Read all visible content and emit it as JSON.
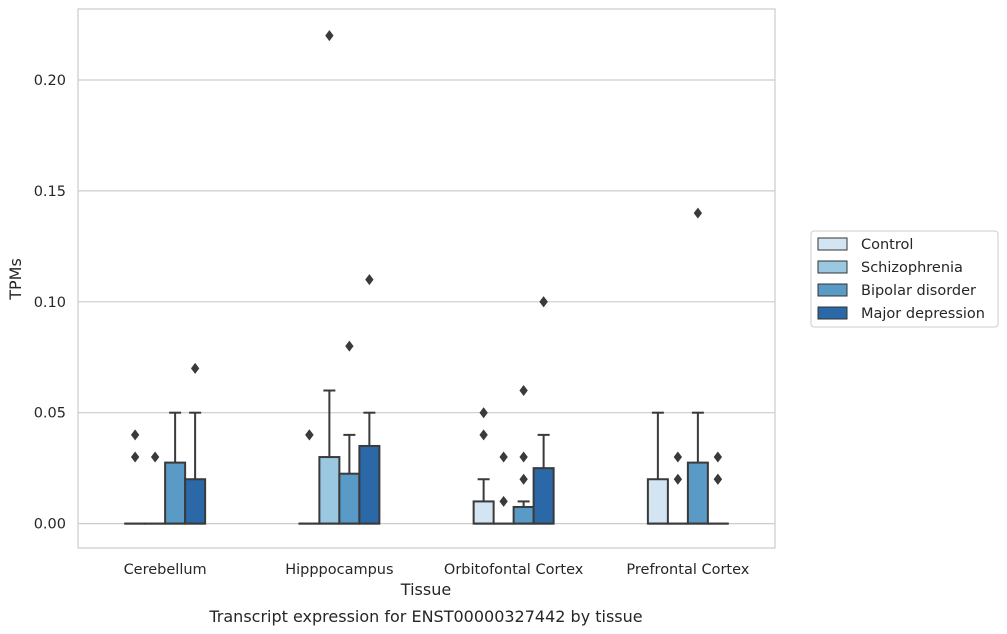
{
  "chart_data": {
    "type": "box",
    "xlabel": "Tissue",
    "ylabel": "TPMs",
    "caption": "Transcript expression for ENST00000327442 by tissue",
    "ylim": [
      -0.011,
      0.232
    ],
    "yticks": [
      0.0,
      0.05,
      0.1,
      0.15,
      0.2
    ],
    "ytick_labels": [
      "0.00",
      "0.05",
      "0.10",
      "0.15",
      "0.20"
    ],
    "grid": "horizontal",
    "legend_position": "right",
    "categories": [
      "Cerebellum",
      "Hipppocampus",
      "Orbitofontal Cortex",
      "Prefrontal Cortex"
    ],
    "series": [
      {
        "name": "Control",
        "color": "#d3e4f3",
        "boxes": [
          {
            "q1": 0.0,
            "median": 0.0,
            "q3": 0.0,
            "whisker_low": 0.0,
            "whisker_high": 0.0,
            "outliers": [
              0.03,
              0.04
            ]
          },
          {
            "q1": 0.0,
            "median": 0.0,
            "q3": 0.0,
            "whisker_low": 0.0,
            "whisker_high": 0.0,
            "outliers": [
              0.04,
              0.04
            ]
          },
          {
            "q1": 0.0,
            "median": 0.0,
            "q3": 0.01,
            "whisker_low": 0.0,
            "whisker_high": 0.02,
            "outliers": [
              0.04,
              0.05
            ]
          },
          {
            "q1": 0.0,
            "median": 0.0,
            "q3": 0.02,
            "whisker_low": 0.0,
            "whisker_high": 0.05,
            "outliers": []
          }
        ]
      },
      {
        "name": "Schizophrenia",
        "color": "#9ac8e0",
        "boxes": [
          {
            "q1": 0.0,
            "median": 0.0,
            "q3": 0.0,
            "whisker_low": 0.0,
            "whisker_high": 0.0,
            "outliers": [
              0.03
            ]
          },
          {
            "q1": 0.0,
            "median": 0.0,
            "q3": 0.03,
            "whisker_low": 0.0,
            "whisker_high": 0.06,
            "outliers": [
              0.22
            ]
          },
          {
            "q1": 0.0,
            "median": 0.0,
            "q3": 0.0,
            "whisker_low": 0.0,
            "whisker_high": 0.0,
            "outliers": [
              0.01,
              0.03
            ]
          },
          {
            "q1": 0.0,
            "median": 0.0,
            "q3": 0.0,
            "whisker_low": 0.0,
            "whisker_high": 0.0,
            "outliers": [
              0.02,
              0.03
            ]
          }
        ]
      },
      {
        "name": "Bipolar disorder",
        "color": "#5a9ac6",
        "boxes": [
          {
            "q1": 0.0,
            "median": 0.0,
            "q3": 0.0275,
            "whisker_low": 0.0,
            "whisker_high": 0.05,
            "outliers": []
          },
          {
            "q1": 0.0,
            "median": 0.0,
            "q3": 0.0225,
            "whisker_low": 0.0,
            "whisker_high": 0.04,
            "outliers": [
              0.08
            ]
          },
          {
            "q1": 0.0,
            "median": 0.0,
            "q3": 0.0075,
            "whisker_low": 0.0,
            "whisker_high": 0.01,
            "outliers": [
              0.02,
              0.03,
              0.06
            ]
          },
          {
            "q1": 0.0,
            "median": 0.0,
            "q3": 0.0275,
            "whisker_low": 0.0,
            "whisker_high": 0.05,
            "outliers": [
              0.14
            ]
          }
        ]
      },
      {
        "name": "Major depression",
        "color": "#2a68a8",
        "boxes": [
          {
            "q1": 0.0,
            "median": 0.0,
            "q3": 0.02,
            "whisker_low": 0.0,
            "whisker_high": 0.05,
            "outliers": [
              0.07
            ]
          },
          {
            "q1": 0.0,
            "median": 0.0,
            "q3": 0.035,
            "whisker_low": 0.0,
            "whisker_high": 0.05,
            "outliers": [
              0.11
            ]
          },
          {
            "q1": 0.0,
            "median": 0.0,
            "q3": 0.025,
            "whisker_low": 0.0,
            "whisker_high": 0.04,
            "outliers": [
              0.1,
              0.1
            ]
          },
          {
            "q1": 0.0,
            "median": 0.0,
            "q3": 0.0,
            "whisker_low": 0.0,
            "whisker_high": 0.0,
            "outliers": [
              0.02,
              0.02,
              0.03
            ]
          }
        ]
      }
    ]
  }
}
